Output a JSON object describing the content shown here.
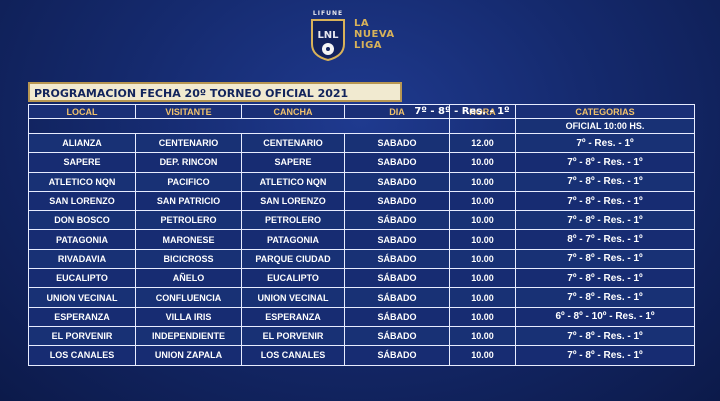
{
  "logo": {
    "brand_top": "LIFUNE",
    "brand_name": [
      "LA",
      "NUEVA",
      "LIGA"
    ]
  },
  "title": "PROGRAMACION  FECHA 20º TORNEO OFICIAL 2021",
  "mid_note": "7º - 8º - Res. - 1º",
  "official_label": "OFICIAL 10:00 HS.",
  "headers": [
    "LOCAL",
    "VISITANTE",
    "CANCHA",
    "DIA",
    "HORA",
    "CATEGORIAS"
  ],
  "rows": [
    [
      "ALIANZA",
      "CENTENARIO",
      "CENTENARIO",
      "SABADO",
      "12.00",
      "7º - Res. - 1º"
    ],
    [
      "SAPERE",
      "DEP. RINCON",
      "SAPERE",
      "SABADO",
      "10.00",
      "7º - 8º - Res. - 1º"
    ],
    [
      "ATLETICO NQN",
      "PACIFICO",
      "ATLETICO NQN",
      "SABADO",
      "10.00",
      "7º - 8º - Res. - 1º"
    ],
    [
      "SAN LORENZO",
      "SAN PATRICIO",
      "SAN LORENZO",
      "SABADO",
      "10.00",
      "7º - 8º - Res. - 1º"
    ],
    [
      "DON BOSCO",
      "PETROLERO",
      "PETROLERO",
      "SÁBADO",
      "10.00",
      "7º - 8º - Res. - 1º"
    ],
    [
      "PATAGONIA",
      "MARONESE",
      "PATAGONIA",
      "SABADO",
      "10.00",
      "8º - 7º - Res. - 1º"
    ],
    [
      "RIVADAVIA",
      "BICICROSS",
      "PARQUE CIUDAD",
      "SÁBADO",
      "10.00",
      "7º - 8º - Res. - 1º"
    ],
    [
      "EUCALIPTO",
      "AÑELO",
      "EUCALIPTO",
      "SÁBADO",
      "10.00",
      "7º - 8º - Res. - 1º"
    ],
    [
      "UNION VECINAL",
      "CONFLUENCIA",
      "UNION VECINAL",
      "SÁBADO",
      "10.00",
      "7º - 8º - Res. - 1º"
    ],
    [
      "ESPERANZA",
      "VILLA IRIS",
      "ESPERANZA",
      "SÁBADO",
      "10.00",
      "6º - 8º - 10º - Res. - 1º"
    ],
    [
      "EL PORVENIR",
      "INDEPENDIENTE",
      "EL PORVENIR",
      "SÁBADO",
      "10.00",
      "7º - 8º - Res. - 1º"
    ],
    [
      "LOS CANALES",
      "UNION ZAPALA",
      "LOS CANALES",
      "SÁBADO",
      "10.00",
      "7º - 8º - Res. - 1º"
    ]
  ]
}
